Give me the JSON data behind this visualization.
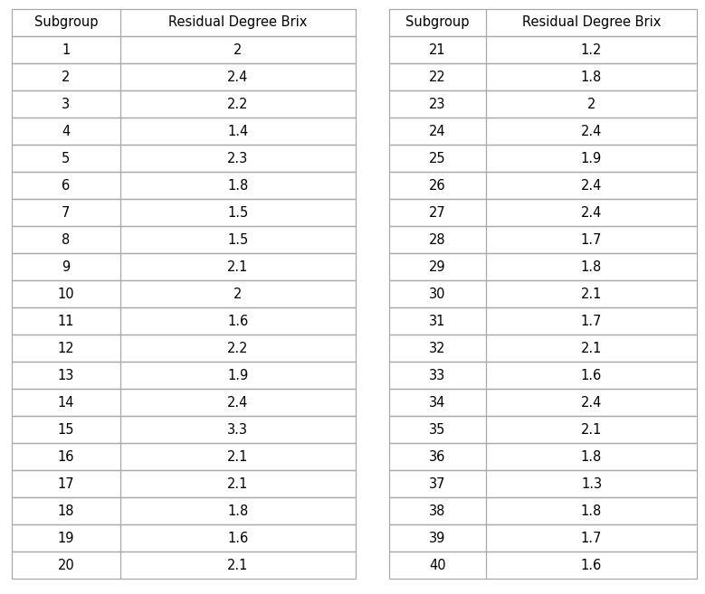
{
  "table1_headers": [
    "Subgroup",
    "Residual Degree Brix"
  ],
  "table1_subgroups": [
    1,
    2,
    3,
    4,
    5,
    6,
    7,
    8,
    9,
    10,
    11,
    12,
    13,
    14,
    15,
    16,
    17,
    18,
    19,
    20
  ],
  "table1_values": [
    "2",
    "2.4",
    "2.2",
    "1.4",
    "2.3",
    "1.8",
    "1.5",
    "1.5",
    "2.1",
    "2",
    "1.6",
    "2.2",
    "1.9",
    "2.4",
    "3.3",
    "2.1",
    "2.1",
    "1.8",
    "1.6",
    "2.1"
  ],
  "table2_headers": [
    "Subgroup",
    "Residual Degree Brix"
  ],
  "table2_subgroups": [
    21,
    22,
    23,
    24,
    25,
    26,
    27,
    28,
    29,
    30,
    31,
    32,
    33,
    34,
    35,
    36,
    37,
    38,
    39,
    40
  ],
  "table2_values": [
    "1.2",
    "1.8",
    "2",
    "2.4",
    "1.9",
    "2.4",
    "2.4",
    "1.7",
    "1.8",
    "2.1",
    "1.7",
    "2.1",
    "1.6",
    "2.4",
    "2.1",
    "1.8",
    "1.3",
    "1.8",
    "1.7",
    "1.6"
  ],
  "background_color": "#ffffff",
  "line_color": "#aaaaaa",
  "header_fontsize": 10.5,
  "cell_fontsize": 10.5,
  "font_family": "DejaVu Sans"
}
